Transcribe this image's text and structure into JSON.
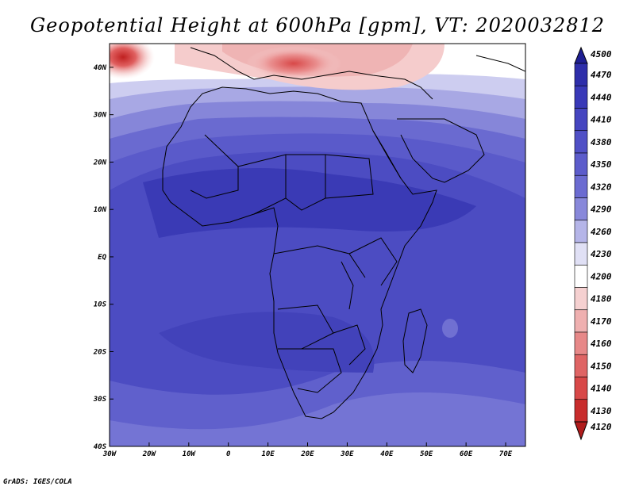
{
  "title": "Geopotential Height at 600hPa [gpm], VT: 2020032812",
  "footer": "GrADS: IGES/COLA",
  "map": {
    "lat_ticks": [
      "40N",
      "30N",
      "20N",
      "10N",
      "EQ",
      "10S",
      "20S",
      "30S",
      "40S"
    ],
    "lon_ticks": [
      "30W",
      "20W",
      "10W",
      "0",
      "10E",
      "20E",
      "30E",
      "40E",
      "50E",
      "60E",
      "70E"
    ],
    "lat_values": [
      40,
      30,
      20,
      10,
      0,
      -10,
      -20,
      -30,
      -40
    ],
    "lon_values": [
      -30,
      -20,
      -10,
      0,
      10,
      20,
      30,
      40,
      50,
      60,
      70
    ]
  },
  "colorbar": {
    "labels": [
      "4500",
      "4470",
      "4440",
      "4410",
      "4380",
      "4350",
      "4320",
      "4290",
      "4260",
      "4230",
      "4200",
      "4180",
      "4170",
      "4160",
      "4150",
      "4140",
      "4130",
      "4120"
    ],
    "colors": [
      "#1f1f93",
      "#2e2eaa",
      "#3939b8",
      "#4545c0",
      "#5050c6",
      "#5c5ccb",
      "#6b6bd1",
      "#8888da",
      "#b5b5e8",
      "#e0e0f5",
      "#ffffff",
      "#f5d0d0",
      "#efb0b0",
      "#e78888",
      "#df6464",
      "#d84848",
      "#c82c2c",
      "#b01c1c"
    ]
  }
}
